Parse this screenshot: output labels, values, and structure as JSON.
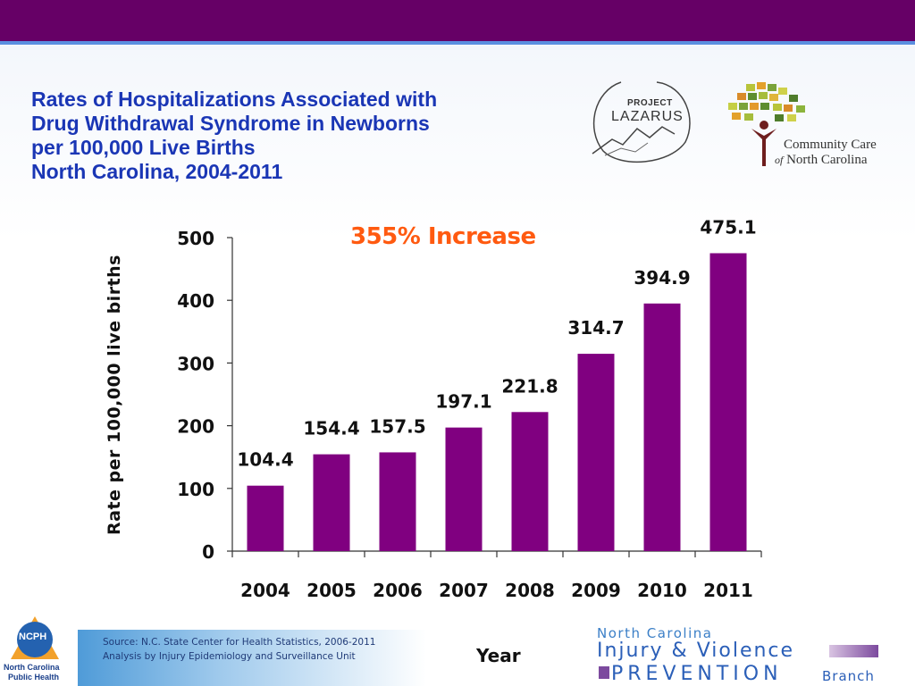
{
  "slide": {
    "title_lines": [
      "Rates of Hospitalizations Associated with",
      "Drug Withdrawal Syndrome in Newborns",
      "per 100,000 Live Births",
      "North Carolina, 2004-2011"
    ],
    "annotation": "355% Increase",
    "source_lines": [
      "Source: N.C. State Center for Health Statistics, 2006-2011",
      "Analysis by Injury Epidemiology and Surveillance Unit"
    ]
  },
  "logos": {
    "lazarus": {
      "top": "PROJECT",
      "main": "LAZARUS"
    },
    "ccnc": {
      "line1": "Community Care",
      "line2_of": "of",
      "line2": "North Carolina"
    },
    "ncph": {
      "abbr": "NCPH",
      "line1": "North Carolina",
      "line2": "Public Health"
    },
    "ivp": {
      "line1": "North Carolina",
      "line2": "Injury & Violence",
      "line3": "PREVENTION",
      "line4": "Branch"
    }
  },
  "colors": {
    "top_band": "#660066",
    "bar": "#800080",
    "title": "#1a36b5",
    "annotation": "#ff5a10"
  },
  "chart_data": {
    "type": "bar",
    "categories": [
      "2004",
      "2005",
      "2006",
      "2007",
      "2008",
      "2009",
      "2010",
      "2011"
    ],
    "values": [
      104.4,
      154.4,
      157.5,
      197.1,
      221.8,
      314.7,
      394.9,
      475.1
    ],
    "data_labels": [
      "104.4",
      "154.4",
      "157.5",
      "197.1",
      "221.8",
      "314.7",
      "394.9",
      "475.1"
    ],
    "xlabel": "Year",
    "ylabel": "Rate per 100,000 live births",
    "ylim": [
      0,
      500
    ],
    "yticks": [
      0,
      100,
      200,
      300,
      400,
      500
    ],
    "grid": false,
    "legend": "none"
  }
}
